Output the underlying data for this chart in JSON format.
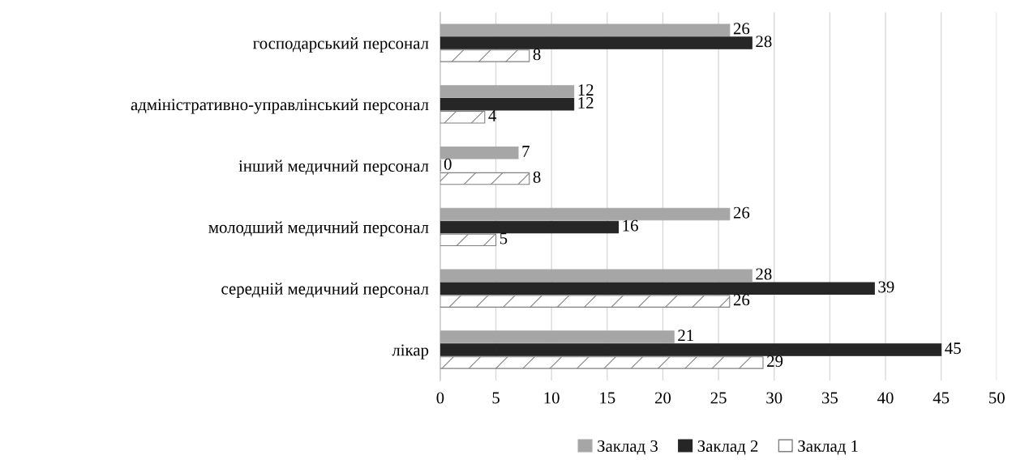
{
  "chart_data": {
    "type": "bar",
    "orientation": "horizontal",
    "categories": [
      "господарський персонал",
      "адміністративно-управлінський персонал",
      "інший медичний персонал",
      "молодший медичний персонал",
      "середній медичний персонал",
      "лікар"
    ],
    "series": [
      {
        "name": "Заклад 3",
        "color": "#a6a6a6",
        "values": [
          26,
          12,
          7,
          26,
          28,
          21
        ]
      },
      {
        "name": "Заклад 2",
        "color": "#262626",
        "values": [
          28,
          12,
          0,
          16,
          39,
          45
        ]
      },
      {
        "name": "Заклад 1",
        "color": "#808080",
        "values": [
          8,
          4,
          8,
          5,
          26,
          29
        ]
      }
    ],
    "xlim": [
      0,
      50
    ],
    "xticks": [
      0,
      5,
      10,
      15,
      20,
      25,
      30,
      35,
      40,
      45,
      50
    ],
    "grid": "x",
    "legend": "bottom",
    "data_labels": true
  }
}
